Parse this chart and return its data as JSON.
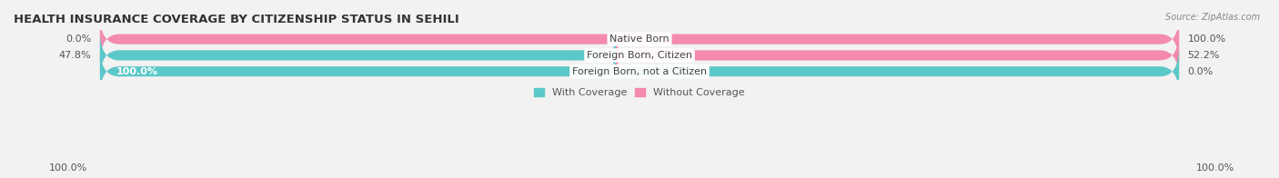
{
  "title": "HEALTH INSURANCE COVERAGE BY CITIZENSHIP STATUS IN SEHILI",
  "source": "Source: ZipAtlas.com",
  "categories": [
    "Native Born",
    "Foreign Born, Citizen",
    "Foreign Born, not a Citizen"
  ],
  "with_coverage": [
    0.0,
    47.8,
    100.0
  ],
  "without_coverage": [
    100.0,
    52.2,
    0.0
  ],
  "left_labels": [
    "0.0%",
    "47.8%",
    "100.0%"
  ],
  "right_labels": [
    "100.0%",
    "52.2%",
    "0.0%"
  ],
  "left_label_on_bar": [
    false,
    false,
    true
  ],
  "color_with": "#5BC8C8",
  "color_without": "#F48AAF",
  "bg_color": "#f2f2f2",
  "bar_bg_color": "#e0e0e0",
  "title_fontsize": 9.5,
  "label_fontsize": 8,
  "bar_height": 0.62,
  "figsize": [
    14.06,
    1.96
  ],
  "dpi": 100,
  "legend_label_with": "With Coverage",
  "legend_label_without": "Without Coverage",
  "bottom_left": "100.0%",
  "bottom_right": "100.0%"
}
